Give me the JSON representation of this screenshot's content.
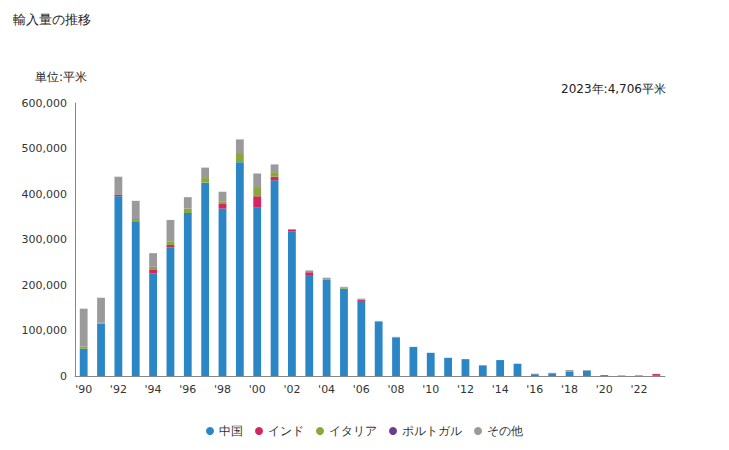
{
  "chart_data": {
    "type": "bar",
    "title": "輸入量の推移",
    "y_label": "単位:平米",
    "annotations": [
      "2023年:4,706平米"
    ],
    "stacked": true,
    "grid": false,
    "legend": "bottom",
    "categories": [
      "'90",
      null,
      "'92",
      null,
      "'94",
      null,
      "'96",
      null,
      "'98",
      null,
      "'00",
      null,
      "'02",
      null,
      "'04",
      null,
      "'06",
      null,
      "'08",
      null,
      "'10",
      null,
      "'12",
      null,
      "'14",
      null,
      "'16",
      null,
      "'18",
      null,
      "'20",
      null,
      "'22",
      null
    ],
    "series": [
      {
        "name": "中国",
        "color": "#2b86c5",
        "values": [
          60000,
          115000,
          395000,
          340000,
          225000,
          283000,
          358000,
          425000,
          368000,
          470000,
          370000,
          430000,
          318000,
          222000,
          212000,
          192000,
          165000,
          119000,
          85000,
          64000,
          51000,
          40000,
          37000,
          22000,
          35000,
          27000,
          4000,
          6000,
          10000,
          12000,
          2000,
          1000,
          500,
          500
        ]
      },
      {
        "name": "インド",
        "color": "#d6265f",
        "values": [
          0,
          0,
          3000,
          0,
          8000,
          5000,
          0,
          0,
          10000,
          0,
          25000,
          8000,
          3000,
          6000,
          0,
          0,
          3000,
          0,
          0,
          0,
          0,
          0,
          0,
          0,
          0,
          0,
          0,
          0,
          0,
          0,
          0,
          0,
          0,
          3800
        ]
      },
      {
        "name": "イタリア",
        "color": "#8aa83a",
        "values": [
          5000,
          2000,
          0,
          5000,
          7000,
          7000,
          10000,
          10000,
          5000,
          20000,
          18000,
          10000,
          0,
          0,
          0,
          2000,
          0,
          0,
          0,
          0,
          0,
          0,
          0,
          0,
          0,
          0,
          0,
          0,
          0,
          0,
          0,
          0,
          0,
          0
        ]
      },
      {
        "name": "ポルトガル",
        "color": "#6a3d91",
        "values": [
          0,
          0,
          0,
          0,
          0,
          0,
          0,
          0,
          0,
          0,
          0,
          0,
          0,
          0,
          0,
          0,
          0,
          0,
          0,
          0,
          0,
          0,
          0,
          0,
          0,
          0,
          0,
          0,
          0,
          0,
          0,
          0,
          0,
          0
        ]
      },
      {
        "name": "その他",
        "color": "#9a9a9a",
        "values": [
          83000,
          55000,
          40000,
          40000,
          30000,
          48000,
          25000,
          23000,
          22000,
          30000,
          32000,
          17000,
          2000,
          4000,
          4000,
          2000,
          2000,
          2000,
          1000,
          0,
          0,
          0,
          0,
          2000,
          0,
          0,
          1000,
          1000,
          3000,
          1000,
          0,
          0,
          1500,
          406
        ]
      }
    ],
    "ylim": [
      0,
      600000
    ],
    "yticks": [
      0,
      {
        "value": 100000,
        "label": "100,000"
      },
      {
        "value": 200000,
        "label": "200,000"
      },
      {
        "value": 300000,
        "label": "300,000"
      },
      {
        "value": 400000,
        "label": "400,000"
      },
      {
        "value": 500000,
        "label": "500,000"
      },
      {
        "value": 600000,
        "label": "600,000"
      }
    ]
  }
}
